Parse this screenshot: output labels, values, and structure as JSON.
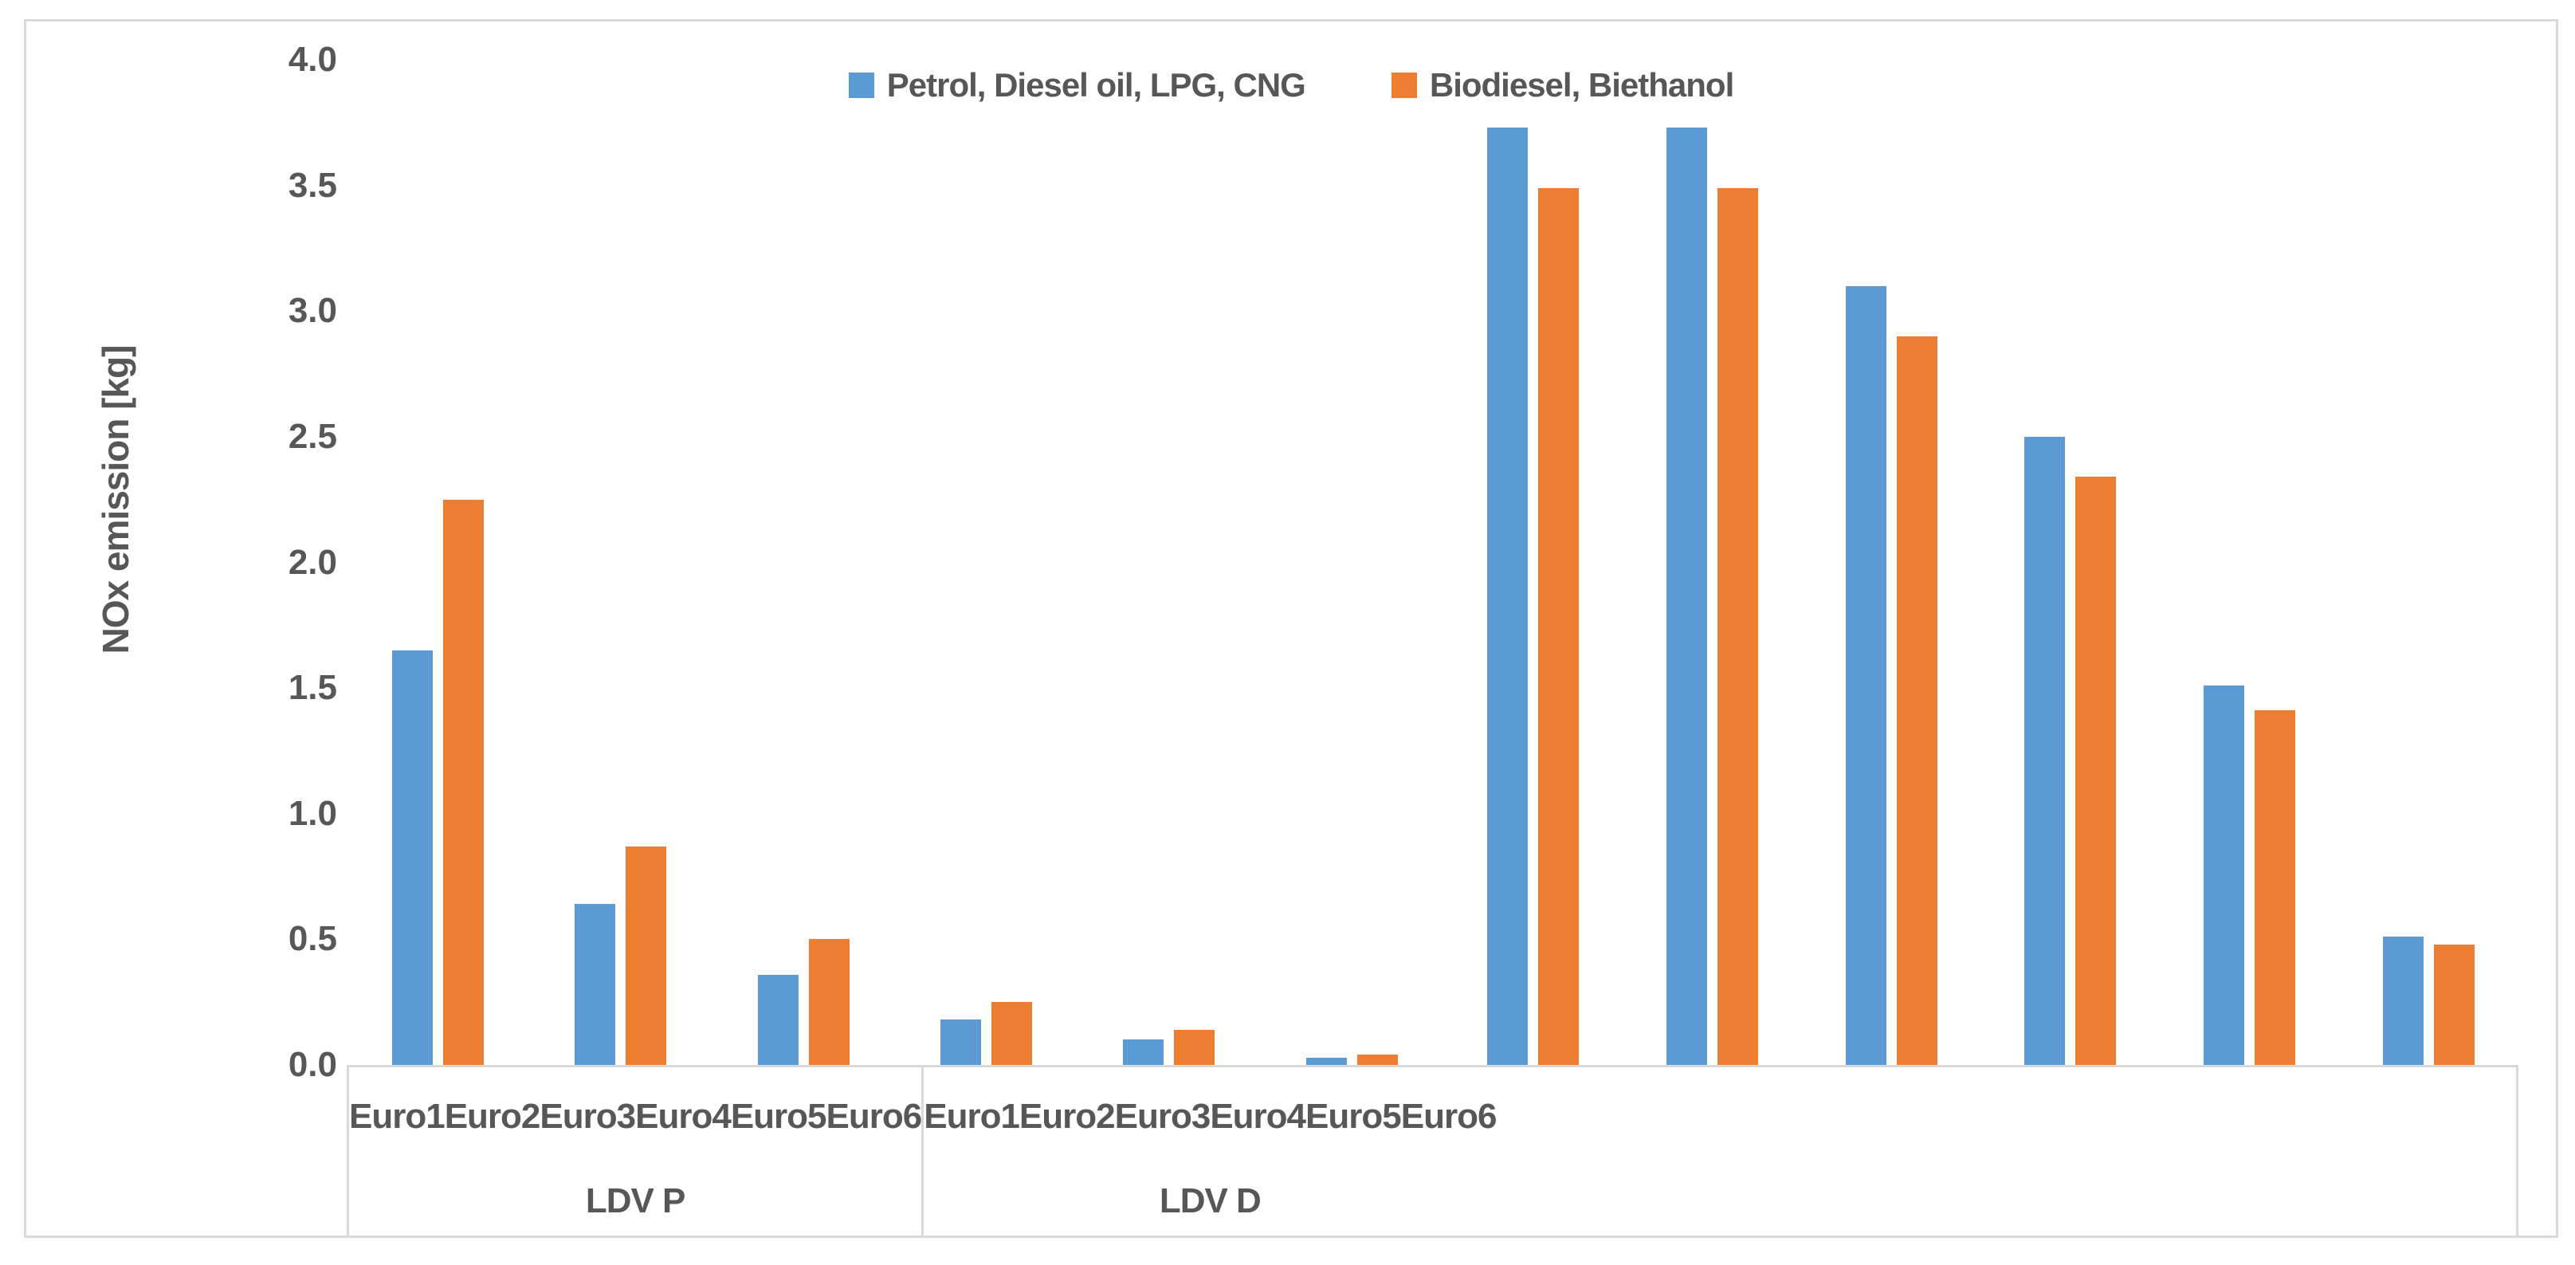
{
  "chart_data": {
    "type": "bar",
    "title": "",
    "ylabel": "NOx emission [kg]",
    "xlabel": "",
    "ylim": [
      0.0,
      4.0
    ],
    "y_ticks": [
      "4.0",
      "3.5",
      "3.0",
      "2.5",
      "2.0",
      "1.5",
      "1.0",
      "0.5",
      "0.0"
    ],
    "grid": "off",
    "legend_position": "top-center",
    "series": [
      {
        "name": "Petrol, Diesel oil, LPG, CNG",
        "color": "#5B9BD5"
      },
      {
        "name": "Biodiesel, Biethanol",
        "color": "#ED7D31"
      }
    ],
    "groups": [
      {
        "label": "LDV P",
        "categories": [
          "Euro1",
          "Euro2",
          "Euro3",
          "Euro4",
          "Euro5",
          "Euro6"
        ],
        "series_values": [
          [
            1.65,
            0.64,
            0.36,
            0.18,
            0.1,
            0.03
          ],
          [
            2.25,
            0.87,
            0.5,
            0.25,
            0.14,
            0.04
          ]
        ]
      },
      {
        "label": "LDV D",
        "categories": [
          "Euro1",
          "Euro2",
          "Euro3",
          "Euro4",
          "Euro5",
          "Euro6"
        ],
        "series_values": [
          [
            3.73,
            3.73,
            3.1,
            2.5,
            1.51,
            0.51
          ],
          [
            3.49,
            3.49,
            2.9,
            2.34,
            1.41,
            0.48
          ]
        ]
      }
    ],
    "colors": {
      "axis_line": "#D9D9D9",
      "frame_border": "#D9D9D9",
      "text": "#575757",
      "background": "#FFFFFF"
    }
  }
}
